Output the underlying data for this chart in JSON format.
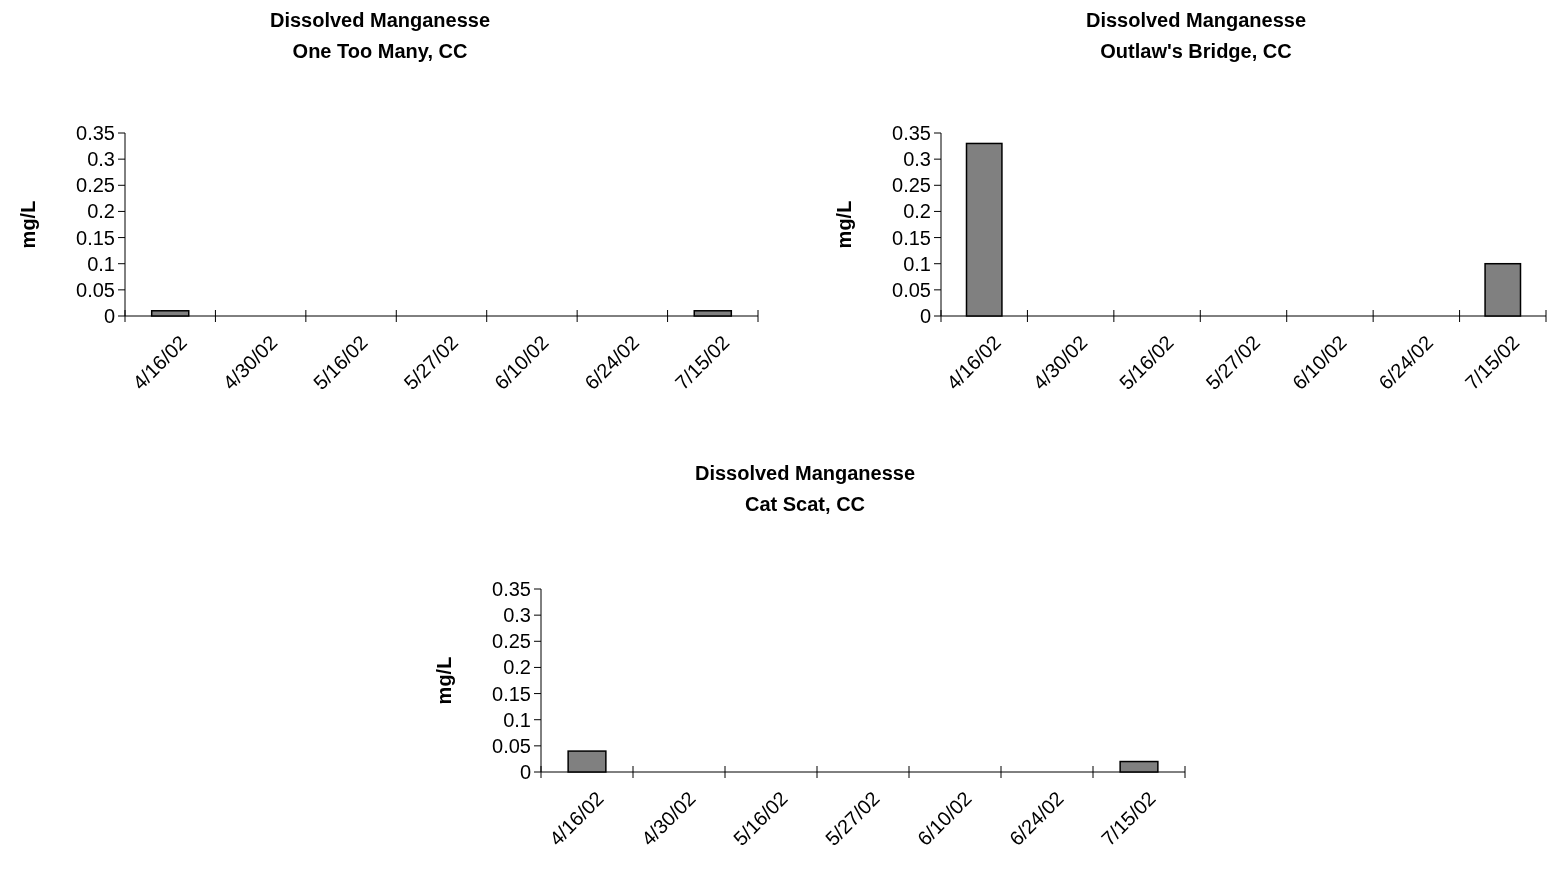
{
  "chart_data": [
    {
      "type": "bar",
      "title": "Dissolved Manganesse",
      "subtitle": "One Too Many, CC",
      "ylabel": "mg/L",
      "categories": [
        "4/16/02",
        "4/30/02",
        "5/16/02",
        "5/27/02",
        "6/10/02",
        "6/24/02",
        "7/15/02"
      ],
      "values": [
        0.01,
        null,
        null,
        null,
        null,
        null,
        0.01
      ],
      "color": "#808080",
      "ylim": [
        0,
        0.35
      ],
      "yticks": [
        0,
        0.05,
        0.1,
        0.15,
        0.2,
        0.25,
        0.3,
        0.35
      ]
    },
    {
      "type": "bar",
      "title": "Dissolved Manganesse",
      "subtitle": "Outlaw's Bridge, CC",
      "ylabel": "mg/L",
      "categories": [
        "4/16/02",
        "4/30/02",
        "5/16/02",
        "5/27/02",
        "6/10/02",
        "6/24/02",
        "7/15/02"
      ],
      "values": [
        0.33,
        null,
        null,
        null,
        null,
        null,
        0.1
      ],
      "color": "#808080",
      "ylim": [
        0,
        0.35
      ],
      "yticks": [
        0,
        0.05,
        0.1,
        0.15,
        0.2,
        0.25,
        0.3,
        0.35
      ]
    },
    {
      "type": "bar",
      "title": "Dissolved Manganesse",
      "subtitle": "Cat Scat, CC",
      "ylabel": "mg/L",
      "categories": [
        "4/16/02",
        "4/30/02",
        "5/16/02",
        "5/27/02",
        "6/10/02",
        "6/24/02",
        "7/15/02"
      ],
      "values": [
        0.04,
        null,
        null,
        null,
        null,
        null,
        0.02
      ],
      "color": "#808080",
      "ylim": [
        0,
        0.35
      ],
      "yticks": [
        0,
        0.05,
        0.1,
        0.15,
        0.2,
        0.25,
        0.3,
        0.35
      ]
    }
  ]
}
